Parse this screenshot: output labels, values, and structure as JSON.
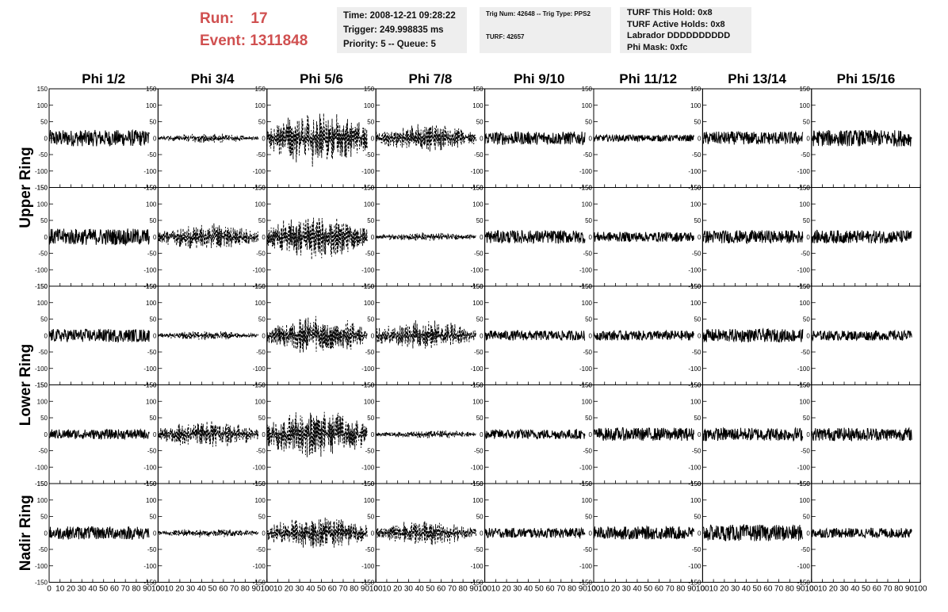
{
  "header": {
    "run_label": "Run:",
    "run_value": "17",
    "event_label": "Event:",
    "event_value": "1311848",
    "time": "Time: 2008-12-21 09:28:22",
    "trigger": "Trigger: 249.998835 ms",
    "priority": "Priority: 5 -- Queue: 5",
    "trig_num": "Trig Num: 42648 -- Trig Type: PPS2",
    "turf": "TURF: 42657",
    "turf_this_hold": "TURF This Hold: 0x8",
    "turf_active_holds": "TURF Active Holds: 0x8",
    "labrador": "Labrador DDDDDDDDDD",
    "phi_mask": "Phi Mask: 0xfc"
  },
  "chart_data": {
    "type": "line",
    "columns": [
      "Phi 1/2",
      "Phi 3/4",
      "Phi 5/6",
      "Phi 7/8",
      "Phi 9/10",
      "Phi 11/12",
      "Phi 13/14",
      "Phi 15/16"
    ],
    "ring_labels": [
      "Upper Ring",
      "Lower Ring",
      "Nadir Ring"
    ],
    "rows": 5,
    "xlim": [
      0,
      100
    ],
    "ylim": [
      -150,
      150
    ],
    "x_ticks": [
      0,
      10,
      20,
      30,
      40,
      50,
      60,
      70,
      80,
      90,
      100
    ],
    "y_ticks": [
      -150,
      -100,
      -50,
      0,
      50,
      100,
      150
    ],
    "waveform_x_range": [
      0,
      92
    ],
    "line_color": "#000000",
    "dashed_panels": [
      [
        0,
        1
      ],
      [
        0,
        2
      ],
      [
        0,
        3
      ],
      [
        1,
        1
      ],
      [
        1,
        2
      ],
      [
        1,
        3
      ],
      [
        2,
        1
      ],
      [
        2,
        2
      ],
      [
        2,
        3
      ],
      [
        3,
        1
      ],
      [
        3,
        2
      ],
      [
        3,
        3
      ],
      [
        4,
        1
      ],
      [
        4,
        2
      ],
      [
        4,
        3
      ]
    ],
    "panel_amplitudes": [
      [
        25,
        15,
        90,
        45,
        20,
        10,
        20,
        25
      ],
      [
        25,
        45,
        75,
        15,
        20,
        15,
        20,
        20
      ],
      [
        20,
        15,
        65,
        50,
        15,
        15,
        20,
        15
      ],
      [
        15,
        45,
        80,
        15,
        15,
        20,
        20,
        20
      ],
      [
        20,
        15,
        55,
        40,
        15,
        20,
        25,
        15
      ]
    ]
  }
}
